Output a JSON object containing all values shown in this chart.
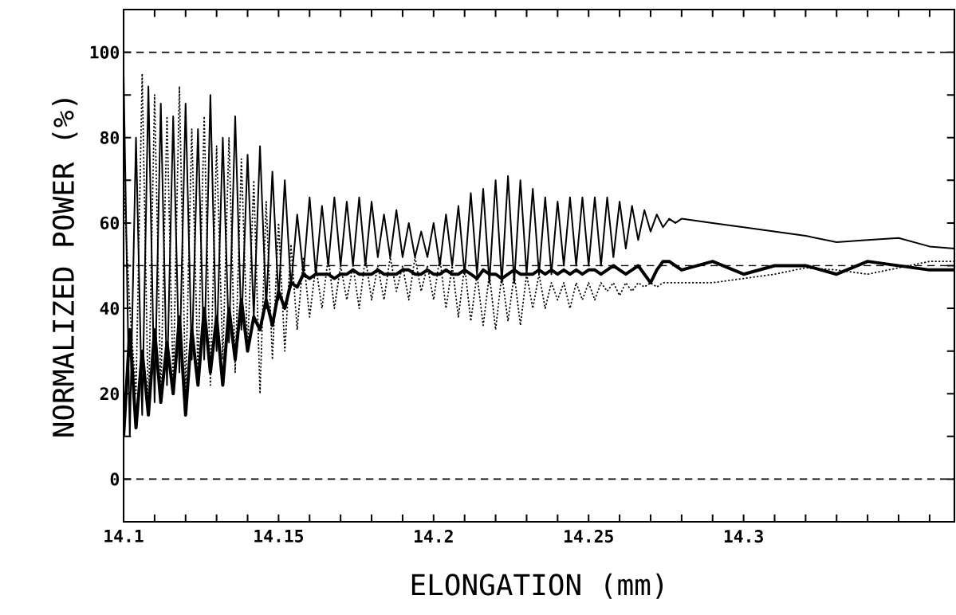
{
  "chart_data": {
    "type": "line",
    "xlabel": "ELONGATION (mm)",
    "ylabel": "NORMALIZED POWER (%)",
    "x": [
      14.1,
      14.102,
      14.104,
      14.106,
      14.108,
      14.11,
      14.112,
      14.114,
      14.116,
      14.118,
      14.12,
      14.122,
      14.124,
      14.126,
      14.128,
      14.13,
      14.132,
      14.134,
      14.136,
      14.138,
      14.14,
      14.142,
      14.144,
      14.146,
      14.148,
      14.15,
      14.152,
      14.154,
      14.156,
      14.158,
      14.16,
      14.162,
      14.164,
      14.166,
      14.168,
      14.17,
      14.172,
      14.174,
      14.176,
      14.178,
      14.18,
      14.182,
      14.184,
      14.186,
      14.188,
      14.19,
      14.192,
      14.194,
      14.196,
      14.198,
      14.2,
      14.202,
      14.204,
      14.206,
      14.208,
      14.21,
      14.212,
      14.214,
      14.216,
      14.218,
      14.22,
      14.222,
      14.224,
      14.226,
      14.228,
      14.23,
      14.232,
      14.234,
      14.236,
      14.238,
      14.24,
      14.242,
      14.244,
      14.246,
      14.248,
      14.25,
      14.252,
      14.254,
      14.256,
      14.258,
      14.26,
      14.262,
      14.264,
      14.266,
      14.268,
      14.27,
      14.272,
      14.274,
      14.276,
      14.278,
      14.28,
      14.29,
      14.3,
      14.31,
      14.32,
      14.33,
      14.34,
      14.35,
      14.36,
      14.368
    ],
    "series": [
      {
        "color": "#000000",
        "line_style": "solid",
        "values": [
          95,
          10,
          80,
          15,
          92,
          18,
          88,
          22,
          85,
          25,
          88,
          28,
          82,
          28,
          90,
          30,
          80,
          32,
          85,
          35,
          76,
          38,
          78,
          40,
          72,
          42,
          70,
          45,
          62,
          48,
          66,
          48,
          64,
          50,
          66,
          50,
          65,
          50,
          66,
          50,
          65,
          52,
          62,
          52,
          63,
          52,
          60,
          52,
          58,
          52,
          60,
          50,
          62,
          50,
          64,
          48,
          67,
          48,
          68,
          46,
          70,
          46,
          71,
          46,
          70,
          48,
          68,
          48,
          66,
          48,
          65,
          50,
          66,
          50,
          66,
          50,
          66,
          50,
          66,
          52,
          65,
          54,
          64,
          56,
          63,
          58,
          62,
          59,
          61,
          60,
          61,
          60,
          59,
          58,
          57,
          55.5,
          56,
          56.5,
          54.5,
          54
        ]
      },
      {
        "color": "#000000",
        "line_style": "dotted",
        "values": [
          70,
          40,
          20,
          95,
          15,
          90,
          20,
          85,
          22,
          92,
          20,
          82,
          25,
          85,
          22,
          78,
          28,
          80,
          25,
          75,
          30,
          70,
          20,
          65,
          28,
          60,
          30,
          55,
          35,
          52,
          38,
          50,
          40,
          52,
          40,
          50,
          42,
          50,
          40,
          52,
          42,
          50,
          42,
          52,
          44,
          50,
          42,
          52,
          44,
          50,
          42,
          52,
          40,
          50,
          38,
          50,
          37,
          48,
          36,
          48,
          35,
          48,
          37,
          48,
          36,
          48,
          40,
          48,
          40,
          46,
          42,
          46,
          40,
          46,
          42,
          46,
          42,
          46,
          44,
          46,
          43,
          46,
          44,
          46,
          45,
          46,
          45,
          46,
          46,
          46,
          46,
          46,
          47,
          48,
          49.5,
          49,
          48,
          49.5,
          51,
          51
        ]
      },
      {
        "color": "#000000",
        "line_style": "solid",
        "values": [
          10,
          35,
          12,
          30,
          15,
          35,
          18,
          32,
          20,
          38,
          15,
          35,
          22,
          40,
          25,
          38,
          22,
          40,
          28,
          42,
          30,
          38,
          35,
          42,
          36,
          44,
          40,
          46,
          45,
          48,
          47,
          48,
          48,
          48,
          47,
          48,
          48,
          49,
          48,
          48,
          48,
          49,
          48,
          48,
          48,
          49,
          49,
          48,
          48,
          49,
          48,
          48,
          49,
          48,
          48,
          49,
          48,
          47,
          49,
          48,
          48,
          47,
          48,
          49,
          48,
          48,
          48,
          49,
          48,
          49,
          48,
          49,
          48,
          49,
          48,
          49,
          49,
          48,
          49,
          50,
          49,
          48,
          49,
          50,
          48,
          46,
          49,
          51,
          51,
          50,
          49,
          51,
          48,
          50,
          50,
          48,
          51,
          50,
          49,
          49
        ]
      }
    ],
    "xlim": [
      14.1,
      14.368
    ],
    "ylim": [
      -10,
      110
    ],
    "xticks": [
      14.1,
      {
        "value": 14.11,
        "label": null
      },
      {
        "value": 14.12,
        "label": null
      },
      {
        "value": 14.13,
        "label": null
      },
      {
        "value": 14.14,
        "label": null
      },
      14.15,
      {
        "value": 14.16,
        "label": null
      },
      {
        "value": 14.17,
        "label": null
      },
      {
        "value": 14.18,
        "label": null
      },
      {
        "value": 14.19,
        "label": null
      },
      14.2,
      {
        "value": 14.21,
        "label": null
      },
      {
        "value": 14.22,
        "label": null
      },
      {
        "value": 14.23,
        "label": null
      },
      {
        "value": 14.24,
        "label": null
      },
      14.25,
      {
        "value": 14.26,
        "label": null
      },
      {
        "value": 14.27,
        "label": null
      },
      {
        "value": 14.28,
        "label": null
      },
      {
        "value": 14.29,
        "label": null
      },
      14.3,
      {
        "value": 14.31,
        "label": null
      },
      {
        "value": 14.32,
        "label": null
      },
      {
        "value": 14.33,
        "label": null
      },
      {
        "value": 14.34,
        "label": null
      },
      {
        "value": 14.35,
        "label": null
      },
      {
        "value": 14.36,
        "label": null
      }
    ],
    "yticks": [
      {
        "value": -10,
        "label": null
      },
      0,
      {
        "value": 10,
        "label": null
      },
      20,
      {
        "value": 30,
        "label": null
      },
      40,
      {
        "value": 50,
        "label": null
      },
      60,
      {
        "value": 70,
        "label": null
      },
      80,
      {
        "value": 90,
        "label": null
      },
      100
    ],
    "ref_lines": [
      {
        "axis": "y",
        "value": 100,
        "line_style": "dashed"
      },
      {
        "axis": "y",
        "value": 50,
        "line_style": "dashed"
      },
      {
        "axis": "y",
        "value": 0,
        "line_style": "dashed"
      }
    ],
    "grid": false
  }
}
